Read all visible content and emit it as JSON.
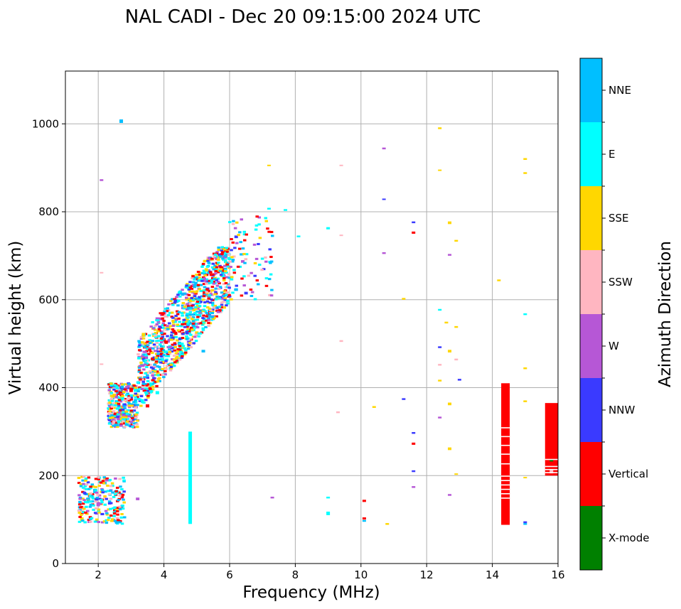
{
  "chart_data": {
    "type": "scatter",
    "title": "NAL CADI - Dec 20 09:15:00 2024 UTC",
    "xlabel": "Frequency (MHz)",
    "ylabel": "Virtual height (km)",
    "xlim": [
      1,
      16
    ],
    "ylim": [
      0,
      1120
    ],
    "xticks": [
      2,
      4,
      6,
      8,
      10,
      12,
      14,
      16
    ],
    "yticks": [
      0,
      200,
      400,
      600,
      800,
      1000
    ],
    "grid": true,
    "colorbar": {
      "title": "Azimuth Direction",
      "categories": [
        {
          "name": "X-mode",
          "color": "#008000"
        },
        {
          "name": "Vertical",
          "color": "#ff0000"
        },
        {
          "name": "NNW",
          "color": "#3a3aff"
        },
        {
          "name": "W",
          "color": "#b657d6"
        },
        {
          "name": "SSW",
          "color": "#ffb6c1"
        },
        {
          "name": "SSE",
          "color": "#ffd700"
        },
        {
          "name": "E",
          "color": "#00ffff"
        },
        {
          "name": "NNE",
          "color": "#00bfff"
        }
      ]
    },
    "series": [
      {
        "name": "Vertical",
        "points": [
          [
            14.4,
            88,
            410
          ],
          [
            15.8,
            200,
            365
          ],
          [
            15.8,
            230,
            240
          ],
          [
            1.5,
            112,
            120
          ],
          [
            2.5,
            330,
            340
          ],
          [
            3.0,
            390,
            400
          ],
          [
            3.5,
            355,
            362
          ],
          [
            4.0,
            505,
            512
          ],
          [
            10.1,
            140,
            145
          ],
          [
            10.1,
            100,
            105
          ],
          [
            11.6,
            270,
            275
          ],
          [
            11.6,
            750,
            755
          ]
        ]
      },
      {
        "name": "X-mode",
        "points": [
          [
            15.8,
            232,
            236
          ]
        ]
      },
      {
        "name": "E",
        "points": [
          [
            4.8,
            90,
            300
          ],
          [
            9.0,
            110,
            118
          ],
          [
            9.0,
            148,
            152
          ],
          [
            9.0,
            760,
            765
          ],
          [
            7.7,
            802,
            806
          ],
          [
            8.1,
            742,
            746
          ],
          [
            7.2,
            805,
            809
          ],
          [
            6.0,
            690,
            695
          ],
          [
            5.5,
            560,
            565
          ],
          [
            4.5,
            470,
            478
          ],
          [
            3.8,
            385,
            392
          ],
          [
            4.2,
            440,
            446
          ],
          [
            1.8,
            150,
            158
          ],
          [
            15.0,
            565,
            569
          ],
          [
            12.4,
            575,
            579
          ]
        ]
      },
      {
        "name": "NNE",
        "points": [
          [
            2.7,
            1002,
            1010
          ],
          [
            1.7,
            140,
            150
          ],
          [
            1.9,
            160,
            170
          ],
          [
            2.2,
            180,
            186
          ],
          [
            4.9,
            540,
            546
          ],
          [
            5.2,
            480,
            486
          ],
          [
            6.2,
            620,
            626
          ],
          [
            10.1,
            95,
            99
          ],
          [
            15.0,
            88,
            92
          ]
        ]
      },
      {
        "name": "SSE",
        "points": [
          [
            12.4,
            988,
            992
          ],
          [
            15.0,
            918,
            922
          ],
          [
            15.0,
            886,
            890
          ],
          [
            12.4,
            893,
            896
          ],
          [
            7.2,
            904,
            907
          ],
          [
            12.7,
            772,
            778
          ],
          [
            12.9,
            732,
            736
          ],
          [
            14.2,
            642,
            646
          ],
          [
            11.3,
            600,
            604
          ],
          [
            12.6,
            546,
            550
          ],
          [
            12.9,
            536,
            540
          ],
          [
            12.7,
            480,
            486
          ],
          [
            15.0,
            442,
            446
          ],
          [
            12.4,
            414,
            418
          ],
          [
            12.7,
            360,
            366
          ],
          [
            15.0,
            367,
            371
          ],
          [
            12.7,
            258,
            264
          ],
          [
            12.9,
            202,
            205
          ],
          [
            15.0,
            194,
            197
          ],
          [
            10.4,
            354,
            358
          ],
          [
            10.8,
            88,
            92
          ],
          [
            1.5,
            95,
            105
          ],
          [
            3.6,
            400,
            408
          ],
          [
            4.4,
            455,
            462
          ],
          [
            5.0,
            520,
            528
          ]
        ]
      },
      {
        "name": "NNW",
        "points": [
          [
            10.7,
            827,
            830
          ],
          [
            11.6,
            774,
            778
          ],
          [
            12.4,
            490,
            494
          ],
          [
            13.0,
            416,
            420
          ],
          [
            11.3,
            372,
            376
          ],
          [
            11.6,
            295,
            299
          ],
          [
            11.6,
            208,
            212
          ],
          [
            15.0,
            92,
            96
          ],
          [
            6.2,
            740,
            746
          ],
          [
            6.5,
            612,
            618
          ],
          [
            2.8,
            338,
            344
          ]
        ]
      },
      {
        "name": "W",
        "points": [
          [
            10.7,
            942,
            946
          ],
          [
            10.7,
            704,
            708
          ],
          [
            12.7,
            700,
            704
          ],
          [
            12.4,
            330,
            334
          ],
          [
            12.7,
            154,
            158
          ],
          [
            11.6,
            172,
            176
          ],
          [
            7.3,
            148,
            152
          ],
          [
            2.1,
            870,
            874
          ],
          [
            6.4,
            684,
            690
          ],
          [
            5.8,
            600,
            606
          ],
          [
            3.2,
            144,
            150
          ],
          [
            2.0,
            130,
            140
          ]
        ]
      },
      {
        "name": "SSW",
        "points": [
          [
            9.4,
            904,
            907
          ],
          [
            9.4,
            745,
            748
          ],
          [
            9.4,
            504,
            508
          ],
          [
            9.3,
            342,
            346
          ],
          [
            12.9,
            462,
            466
          ],
          [
            12.4,
            450,
            454
          ],
          [
            15.8,
            205,
            215
          ],
          [
            2.1,
            660,
            663
          ],
          [
            2.1,
            452,
            455
          ],
          [
            4.0,
            565,
            569
          ],
          [
            3.3,
            500,
            506
          ]
        ]
      }
    ]
  }
}
